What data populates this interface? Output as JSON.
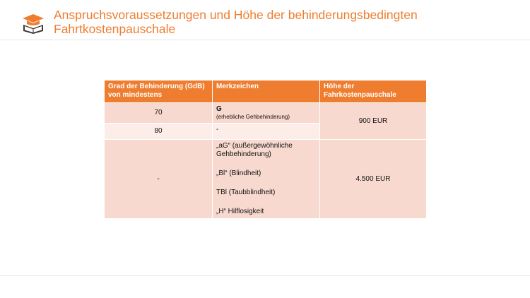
{
  "title": {
    "line1": "Anspruchsvoraussetzungen und Höhe der behinderungsbedingten",
    "line2": "Fahrtkostenpauschale"
  },
  "logo": {
    "icon": "book-with-cap-icon",
    "color": "#ee7d2f"
  },
  "colors": {
    "accent": "#ee7d2f",
    "row_dark": "#f8d9cf",
    "row_light": "#fcede9"
  },
  "table": {
    "headers": [
      "Grad der Behinderung (GdB) von mindestens",
      "Merkzeichen",
      "Höhe der Fahrkostenpauschale"
    ],
    "rows": [
      {
        "gdb": "70",
        "merkzeichen": "G",
        "merkzeichen_note": "(erhebliche Gehbehinderung)"
      },
      {
        "gdb": "80",
        "merkzeichen": "-"
      },
      {
        "gdb": "-",
        "merkzeichen_list": [
          "„aG“ (außergewöhnliche Gehbehinderung)",
          "„Bl“ (Blindheit)",
          "TBl (Taubblindheit)",
          "„H“ Hilflosigkeit"
        ]
      }
    ],
    "amounts": [
      "900 EUR",
      "4.500 EUR"
    ]
  }
}
